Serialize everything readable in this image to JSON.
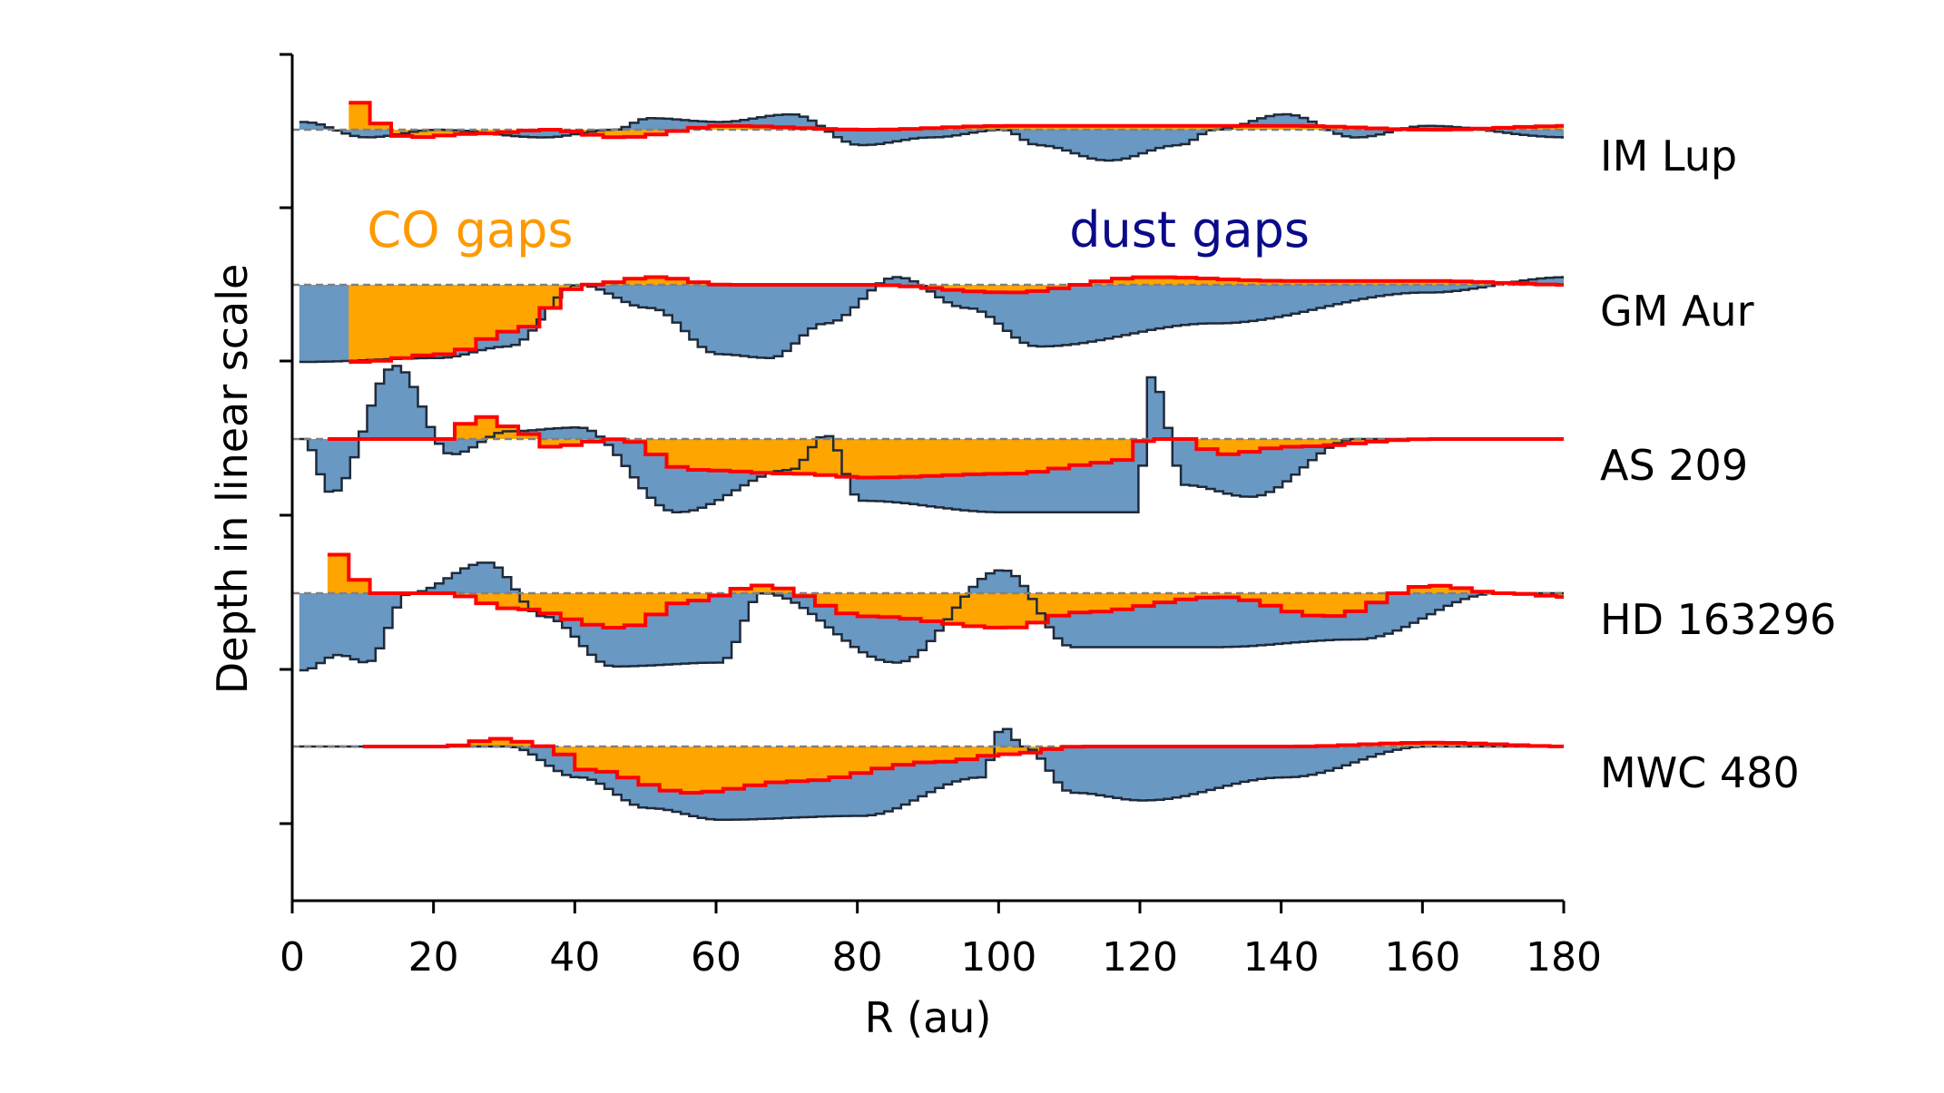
{
  "chart_data": {
    "type": "area",
    "title": "",
    "xlabel": "R (au)",
    "ylabel": "Depth in linear scale",
    "xlim": [
      0,
      180
    ],
    "xticks": [
      "0",
      "20",
      "40",
      "60",
      "80",
      "100",
      "120",
      "140",
      "160",
      "180"
    ],
    "y_scale": "linear, panels stacked with vertical offset; no y tick labels",
    "grid": false,
    "annotations": [
      {
        "text": "CO gaps",
        "color": "#ff9900",
        "x": 26
      },
      {
        "text": "dust gaps",
        "color": "#0a0a8a",
        "x": 128
      }
    ],
    "colors": {
      "co_fill": "#ffa500",
      "co_line": "#ff0000",
      "dust_fill": "#4f86b8",
      "dust_line": "#1f2a3a",
      "baseline": "#808080"
    },
    "disks": [
      {
        "name": "IM Lup",
        "co_gap_depth": [
          [
            8,
            0.35
          ],
          [
            10,
            0.1
          ],
          [
            15,
            -0.1
          ],
          [
            25,
            -0.05
          ],
          [
            35,
            0
          ],
          [
            45,
            -0.1
          ],
          [
            60,
            0.05
          ],
          [
            80,
            0
          ],
          [
            100,
            0.05
          ],
          [
            120,
            0.05
          ],
          [
            140,
            0.05
          ],
          [
            160,
            0
          ],
          [
            180,
            0.05
          ]
        ],
        "dust_gap_depth": [
          [
            1,
            0.1
          ],
          [
            10,
            -0.1
          ],
          [
            20,
            0
          ],
          [
            35,
            -0.1
          ],
          [
            45,
            0
          ],
          [
            50,
            0.15
          ],
          [
            60,
            0.1
          ],
          [
            70,
            0.2
          ],
          [
            80,
            -0.2
          ],
          [
            90,
            -0.1
          ],
          [
            100,
            0
          ],
          [
            105,
            -0.2
          ],
          [
            115,
            -0.4
          ],
          [
            125,
            -0.2
          ],
          [
            130,
            0
          ],
          [
            140,
            0.2
          ],
          [
            150,
            -0.1
          ],
          [
            160,
            0.05
          ],
          [
            180,
            -0.1
          ]
        ]
      },
      {
        "name": "GM Aur",
        "co_gap_depth": [
          [
            8,
            -1
          ],
          [
            20,
            -0.9
          ],
          [
            30,
            -0.6
          ],
          [
            40,
            0
          ],
          [
            50,
            0.1
          ],
          [
            60,
            0
          ],
          [
            80,
            0
          ],
          [
            100,
            -0.1
          ],
          [
            120,
            0.1
          ],
          [
            140,
            0.05
          ],
          [
            160,
            0.05
          ],
          [
            180,
            0
          ]
        ],
        "dust_gap_depth": [
          [
            1,
            -1
          ],
          [
            20,
            -0.95
          ],
          [
            30,
            -0.8
          ],
          [
            40,
            0
          ],
          [
            50,
            -0.3
          ],
          [
            60,
            -0.9
          ],
          [
            67,
            -0.95
          ],
          [
            75,
            -0.5
          ],
          [
            85,
            0.1
          ],
          [
            95,
            -0.3
          ],
          [
            105,
            -0.8
          ],
          [
            130,
            -0.5
          ],
          [
            160,
            -0.1
          ],
          [
            180,
            0.1
          ]
        ]
      },
      {
        "name": "AS 209",
        "co_gap_depth": [
          [
            5,
            0
          ],
          [
            20,
            0
          ],
          [
            25,
            0.3
          ],
          [
            30,
            0.15
          ],
          [
            35,
            -0.1
          ],
          [
            45,
            0
          ],
          [
            55,
            -0.4
          ],
          [
            70,
            -0.45
          ],
          [
            80,
            -0.5
          ],
          [
            100,
            -0.45
          ],
          [
            115,
            -0.3
          ],
          [
            120,
            0
          ],
          [
            125,
            0
          ],
          [
            130,
            -0.2
          ],
          [
            140,
            -0.1
          ],
          [
            160,
            0
          ],
          [
            180,
            0
          ]
        ],
        "dust_gap_depth": [
          [
            1,
            0
          ],
          [
            5,
            -0.7
          ],
          [
            14,
            0.95
          ],
          [
            22,
            -0.2
          ],
          [
            30,
            0.1
          ],
          [
            40,
            0.15
          ],
          [
            54,
            -0.95
          ],
          [
            70,
            -0.4
          ],
          [
            75,
            0.05
          ],
          [
            80,
            -0.8
          ],
          [
            100,
            -0.95
          ],
          [
            119,
            -0.95
          ],
          [
            121,
            0.8
          ],
          [
            126,
            -0.6
          ],
          [
            135,
            -0.75
          ],
          [
            150,
            0
          ],
          [
            180,
            0
          ]
        ]
      },
      {
        "name": "HD 163296",
        "co_gap_depth": [
          [
            5,
            0.5
          ],
          [
            10,
            0
          ],
          [
            20,
            0
          ],
          [
            30,
            -0.2
          ],
          [
            45,
            -0.45
          ],
          [
            55,
            -0.1
          ],
          [
            65,
            0.1
          ],
          [
            80,
            -0.3
          ],
          [
            100,
            -0.45
          ],
          [
            110,
            -0.25
          ],
          [
            130,
            -0.05
          ],
          [
            145,
            -0.3
          ],
          [
            160,
            0.1
          ],
          [
            170,
            0
          ],
          [
            180,
            -0.05
          ]
        ],
        "dust_gap_depth": [
          [
            1,
            -1
          ],
          [
            6,
            -0.8
          ],
          [
            10,
            -0.9
          ],
          [
            16,
            0
          ],
          [
            27,
            0.4
          ],
          [
            35,
            -0.3
          ],
          [
            45,
            -0.95
          ],
          [
            60,
            -0.9
          ],
          [
            66,
            0
          ],
          [
            85,
            -0.9
          ],
          [
            100,
            0.3
          ],
          [
            110,
            -0.7
          ],
          [
            130,
            -0.7
          ],
          [
            150,
            -0.6
          ],
          [
            170,
            0
          ],
          [
            180,
            0
          ]
        ]
      },
      {
        "name": "MWC 480",
        "co_gap_depth": [
          [
            10,
            0
          ],
          [
            20,
            0
          ],
          [
            28,
            0.1
          ],
          [
            35,
            0
          ],
          [
            40,
            -0.3
          ],
          [
            55,
            -0.6
          ],
          [
            70,
            -0.45
          ],
          [
            90,
            -0.2
          ],
          [
            100,
            -0.1
          ],
          [
            110,
            0
          ],
          [
            140,
            0
          ],
          [
            160,
            0.05
          ],
          [
            180,
            0
          ]
        ],
        "dust_gap_depth": [
          [
            1,
            0
          ],
          [
            30,
            0
          ],
          [
            40,
            -0.4
          ],
          [
            50,
            -0.8
          ],
          [
            60,
            -0.95
          ],
          [
            80,
            -0.9
          ],
          [
            97,
            -0.4
          ],
          [
            100,
            0.25
          ],
          [
            103,
            0
          ],
          [
            110,
            -0.6
          ],
          [
            120,
            -0.7
          ],
          [
            140,
            -0.4
          ],
          [
            160,
            0
          ],
          [
            180,
            0
          ]
        ]
      }
    ]
  }
}
